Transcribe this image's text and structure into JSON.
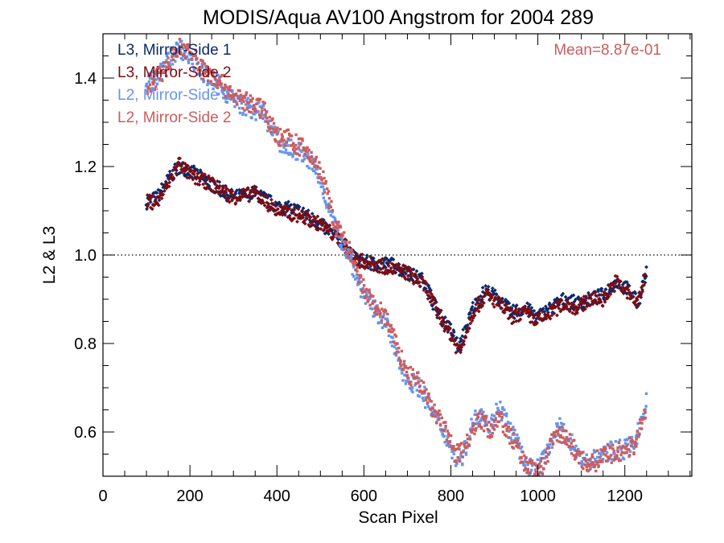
{
  "chart_data": {
    "type": "scatter",
    "title": "MODIS/Aqua AV100 Angstrom for 2004 289",
    "xlabel": "Scan Pixel",
    "ylabel": "L2 & L3",
    "xlim": [
      0,
      1354
    ],
    "ylim": [
      0.5,
      1.5
    ],
    "x_ticks": [
      0,
      200,
      400,
      600,
      800,
      1000,
      1200
    ],
    "x_tick_labels": [
      "0",
      "200",
      "400",
      "600",
      "800",
      "1000",
      "1200"
    ],
    "y_ticks": [
      0.6,
      0.8,
      1.0,
      1.2,
      1.4
    ],
    "y_tick_labels": [
      "0.6",
      "0.8",
      "1.0",
      "1.2",
      "1.4"
    ],
    "reference_line": 1.0,
    "annotation": "Mean=8.87e-01",
    "annotation_color": "#cd5c5c",
    "legend_position": "top-left",
    "series": [
      {
        "name": "L3, Mirror-Side 1",
        "color": "#0a2a6b",
        "points": [
          [
            100,
            1.12
          ],
          [
            125,
            1.13
          ],
          [
            150,
            1.17
          ],
          [
            175,
            1.2
          ],
          [
            200,
            1.19
          ],
          [
            250,
            1.16
          ],
          [
            300,
            1.13
          ],
          [
            350,
            1.14
          ],
          [
            400,
            1.11
          ],
          [
            450,
            1.1
          ],
          [
            500,
            1.07
          ],
          [
            550,
            1.03
          ],
          [
            580,
            0.99
          ],
          [
            620,
            0.98
          ],
          [
            660,
            0.98
          ],
          [
            700,
            0.96
          ],
          [
            740,
            0.94
          ],
          [
            770,
            0.87
          ],
          [
            800,
            0.83
          ],
          [
            820,
            0.79
          ],
          [
            850,
            0.88
          ],
          [
            880,
            0.92
          ],
          [
            910,
            0.9
          ],
          [
            940,
            0.87
          ],
          [
            970,
            0.88
          ],
          [
            1000,
            0.86
          ],
          [
            1030,
            0.88
          ],
          [
            1060,
            0.9
          ],
          [
            1090,
            0.89
          ],
          [
            1120,
            0.9
          ],
          [
            1150,
            0.91
          ],
          [
            1180,
            0.94
          ],
          [
            1210,
            0.92
          ],
          [
            1230,
            0.89
          ],
          [
            1250,
            0.97
          ]
        ]
      },
      {
        "name": "L3, Mirror-Side 2",
        "color": "#7b0c14",
        "points": [
          [
            100,
            1.12
          ],
          [
            125,
            1.12
          ],
          [
            150,
            1.16
          ],
          [
            175,
            1.21
          ],
          [
            200,
            1.18
          ],
          [
            250,
            1.16
          ],
          [
            300,
            1.13
          ],
          [
            350,
            1.14
          ],
          [
            400,
            1.1
          ],
          [
            450,
            1.09
          ],
          [
            500,
            1.07
          ],
          [
            550,
            1.03
          ],
          [
            580,
            0.99
          ],
          [
            620,
            0.98
          ],
          [
            660,
            0.97
          ],
          [
            700,
            0.96
          ],
          [
            740,
            0.93
          ],
          [
            770,
            0.87
          ],
          [
            800,
            0.82
          ],
          [
            820,
            0.78
          ],
          [
            850,
            0.87
          ],
          [
            880,
            0.91
          ],
          [
            910,
            0.89
          ],
          [
            940,
            0.86
          ],
          [
            970,
            0.87
          ],
          [
            1000,
            0.85
          ],
          [
            1030,
            0.87
          ],
          [
            1060,
            0.89
          ],
          [
            1090,
            0.88
          ],
          [
            1120,
            0.9
          ],
          [
            1150,
            0.9
          ],
          [
            1180,
            0.94
          ],
          [
            1210,
            0.91
          ],
          [
            1230,
            0.89
          ],
          [
            1250,
            0.96
          ]
        ]
      },
      {
        "name": "L2, Mirror-Side 1",
        "color": "#6495ed",
        "points": [
          [
            100,
            1.39
          ],
          [
            125,
            1.4
          ],
          [
            150,
            1.44
          ],
          [
            175,
            1.47
          ],
          [
            200,
            1.45
          ],
          [
            230,
            1.41
          ],
          [
            260,
            1.39
          ],
          [
            300,
            1.35
          ],
          [
            340,
            1.33
          ],
          [
            370,
            1.32
          ],
          [
            400,
            1.26
          ],
          [
            430,
            1.24
          ],
          [
            460,
            1.23
          ],
          [
            490,
            1.19
          ],
          [
            510,
            1.14
          ],
          [
            530,
            1.07
          ],
          [
            550,
            1.03
          ],
          [
            570,
            0.99
          ],
          [
            590,
            0.93
          ],
          [
            620,
            0.88
          ],
          [
            650,
            0.85
          ],
          [
            680,
            0.76
          ],
          [
            700,
            0.72
          ],
          [
            730,
            0.7
          ],
          [
            760,
            0.64
          ],
          [
            790,
            0.59
          ],
          [
            810,
            0.54
          ],
          [
            830,
            0.55
          ],
          [
            850,
            0.62
          ],
          [
            870,
            0.65
          ],
          [
            890,
            0.61
          ],
          [
            910,
            0.66
          ],
          [
            930,
            0.62
          ],
          [
            950,
            0.58
          ],
          [
            970,
            0.53
          ],
          [
            990,
            0.51
          ],
          [
            1010,
            0.53
          ],
          [
            1030,
            0.58
          ],
          [
            1050,
            0.61
          ],
          [
            1070,
            0.59
          ],
          [
            1090,
            0.55
          ],
          [
            1110,
            0.53
          ],
          [
            1130,
            0.54
          ],
          [
            1150,
            0.55
          ],
          [
            1180,
            0.56
          ],
          [
            1200,
            0.56
          ],
          [
            1220,
            0.57
          ],
          [
            1240,
            0.63
          ],
          [
            1250,
            0.67
          ]
        ]
      },
      {
        "name": "L2, Mirror-Side 2",
        "color": "#cd5c5c",
        "points": [
          [
            100,
            1.38
          ],
          [
            125,
            1.4
          ],
          [
            150,
            1.43
          ],
          [
            175,
            1.47
          ],
          [
            200,
            1.46
          ],
          [
            230,
            1.42
          ],
          [
            260,
            1.4
          ],
          [
            300,
            1.36
          ],
          [
            340,
            1.34
          ],
          [
            370,
            1.33
          ],
          [
            400,
            1.27
          ],
          [
            430,
            1.26
          ],
          [
            460,
            1.24
          ],
          [
            490,
            1.21
          ],
          [
            510,
            1.16
          ],
          [
            530,
            1.08
          ],
          [
            550,
            1.04
          ],
          [
            570,
            1.0
          ],
          [
            590,
            0.94
          ],
          [
            620,
            0.89
          ],
          [
            650,
            0.86
          ],
          [
            680,
            0.78
          ],
          [
            700,
            0.73
          ],
          [
            730,
            0.71
          ],
          [
            760,
            0.65
          ],
          [
            790,
            0.6
          ],
          [
            810,
            0.55
          ],
          [
            830,
            0.56
          ],
          [
            850,
            0.61
          ],
          [
            870,
            0.63
          ],
          [
            890,
            0.6
          ],
          [
            910,
            0.64
          ],
          [
            930,
            0.6
          ],
          [
            950,
            0.57
          ],
          [
            970,
            0.53
          ],
          [
            990,
            0.51
          ],
          [
            1010,
            0.52
          ],
          [
            1030,
            0.57
          ],
          [
            1050,
            0.6
          ],
          [
            1070,
            0.58
          ],
          [
            1090,
            0.55
          ],
          [
            1110,
            0.53
          ],
          [
            1130,
            0.53
          ],
          [
            1150,
            0.55
          ],
          [
            1180,
            0.55
          ],
          [
            1200,
            0.56
          ],
          [
            1220,
            0.57
          ],
          [
            1240,
            0.62
          ],
          [
            1250,
            0.66
          ]
        ]
      }
    ]
  }
}
